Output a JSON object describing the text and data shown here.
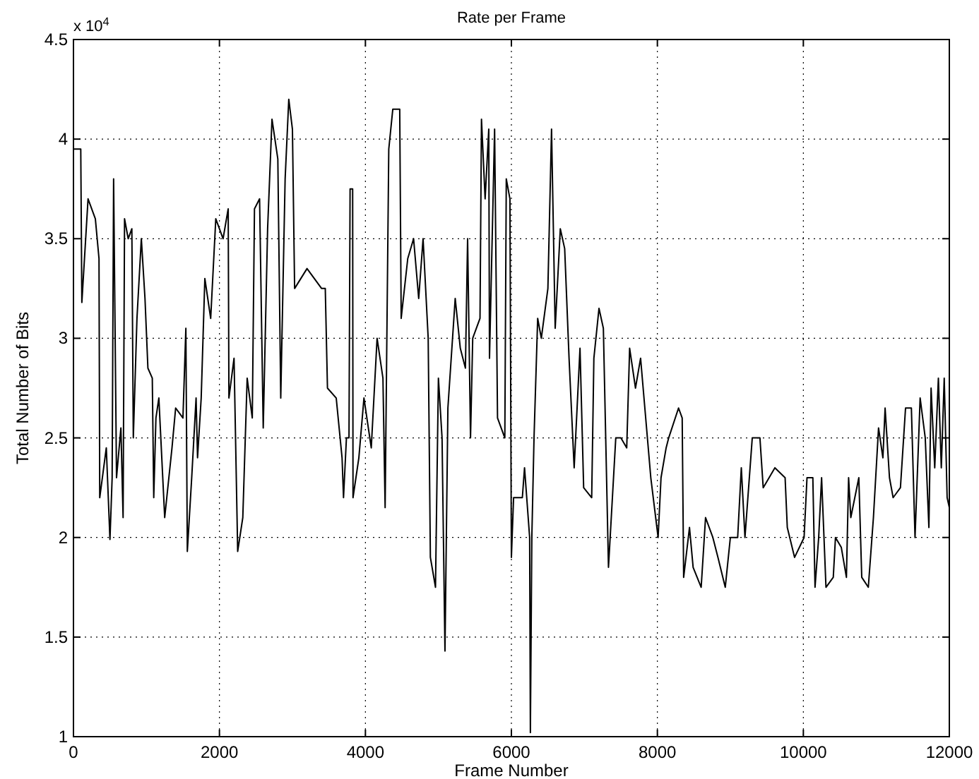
{
  "chart_data": {
    "type": "line",
    "title": "Rate per Frame",
    "xlabel": "Frame Number",
    "ylabel": "Total Number of Bits",
    "annotations": [
      "x 10$^{4}$"
    ],
    "xlim": [
      0,
      12000
    ],
    "xticks": [
      0,
      2000,
      4000,
      6000,
      8000,
      10000,
      12000
    ],
    "ylim": [
      1,
      4.5
    ],
    "yticks": [
      1,
      1.5,
      2,
      2.5,
      3,
      3.5,
      4,
      4.5
    ],
    "grid": true,
    "marker": "none",
    "line_style": "solid",
    "series": [
      {
        "color": "#000000",
        "x": [
          0,
          100,
          115,
          200,
          300,
          350,
          360,
          450,
          500,
          530,
          550,
          590,
          650,
          680,
          700,
          750,
          800,
          820,
          870,
          930,
          980,
          1020,
          1080,
          1100,
          1130,
          1170,
          1250,
          1350,
          1400,
          1500,
          1540,
          1560,
          1620,
          1680,
          1700,
          1750,
          1800,
          1880,
          1950,
          2050,
          2120,
          2130,
          2200,
          2250,
          2320,
          2380,
          2450,
          2480,
          2550,
          2600,
          2660,
          2720,
          2800,
          2840,
          2900,
          2950,
          3000,
          3030,
          3200,
          3400,
          3450,
          3480,
          3600,
          3680,
          3700,
          3740,
          3775,
          3790,
          3825,
          3830,
          3910,
          3980,
          4080,
          4160,
          4240,
          4270,
          4320,
          4375,
          4470,
          4490,
          4580,
          4660,
          4730,
          4790,
          4860,
          4890,
          4960,
          5000,
          5050,
          5090,
          5130,
          5230,
          5300,
          5370,
          5400,
          5440,
          5470,
          5570,
          5590,
          5640,
          5690,
          5700,
          5770,
          5810,
          5910,
          5930,
          5980,
          6000,
          6030,
          6150,
          6180,
          6250,
          6260,
          6280,
          6310,
          6360,
          6410,
          6500,
          6550,
          6600,
          6670,
          6730,
          6790,
          6860,
          6940,
          6990,
          7100,
          7130,
          7200,
          7260,
          7330,
          7430,
          7500,
          7580,
          7620,
          7700,
          7770,
          7910,
          8010,
          8050,
          8120,
          8155,
          8290,
          8340,
          8360,
          8440,
          8490,
          8600,
          8660,
          8760,
          8830,
          8930,
          9000,
          9100,
          9150,
          9200,
          9300,
          9405,
          9450,
          9610,
          9750,
          9780,
          9880,
          10010,
          10050,
          10130,
          10160,
          10210,
          10250,
          10310,
          10410,
          10440,
          10520,
          10590,
          10620,
          10650,
          10760,
          10800,
          10890,
          10960,
          11030,
          11090,
          11120,
          11180,
          11230,
          11330,
          11400,
          11480,
          11530,
          11600,
          11670,
          11720,
          11750,
          11800,
          11850,
          11890,
          11930,
          11970,
          12000
        ],
        "values": [
          3.95,
          3.95,
          3.18,
          3.7,
          3.6,
          3.4,
          2.2,
          2.45,
          1.99,
          2.3,
          3.8,
          2.3,
          2.55,
          2.1,
          3.6,
          3.5,
          3.55,
          2.5,
          3.1,
          3.5,
          3.2,
          2.85,
          2.8,
          2.2,
          2.6,
          2.7,
          2.1,
          2.45,
          2.65,
          2.6,
          3.05,
          1.93,
          2.3,
          2.7,
          2.4,
          2.7,
          3.3,
          3.1,
          3.6,
          3.5,
          3.65,
          2.7,
          2.9,
          1.93,
          2.1,
          2.8,
          2.6,
          3.65,
          3.7,
          2.55,
          3.55,
          4.1,
          3.9,
          2.7,
          3.8,
          4.2,
          4.05,
          3.25,
          3.35,
          3.25,
          3.25,
          2.75,
          2.7,
          2.4,
          2.2,
          2.5,
          2.5,
          3.75,
          3.75,
          2.2,
          2.4,
          2.7,
          2.45,
          3.0,
          2.8,
          2.15,
          3.95,
          4.15,
          4.15,
          3.1,
          3.4,
          3.5,
          3.2,
          3.5,
          3.0,
          1.9,
          1.75,
          2.8,
          2.5,
          1.43,
          2.65,
          3.2,
          2.95,
          2.85,
          3.5,
          2.5,
          3.0,
          3.1,
          4.1,
          3.7,
          4.05,
          2.9,
          4.05,
          2.6,
          2.5,
          3.8,
          3.7,
          1.9,
          2.2,
          2.2,
          2.35,
          2.0,
          1.02,
          2.0,
          2.5,
          3.1,
          3.0,
          3.25,
          4.05,
          3.05,
          3.55,
          3.45,
          2.9,
          2.35,
          2.95,
          2.25,
          2.2,
          2.9,
          3.15,
          3.05,
          1.85,
          2.5,
          2.5,
          2.45,
          2.95,
          2.75,
          2.9,
          2.3,
          2.0,
          2.3,
          2.45,
          2.5,
          2.65,
          2.6,
          1.8,
          2.05,
          1.85,
          1.75,
          2.1,
          2.0,
          1.9,
          1.75,
          2.0,
          2.0,
          2.35,
          2.0,
          2.5,
          2.5,
          2.25,
          2.35,
          2.3,
          2.05,
          1.9,
          2.0,
          2.3,
          2.3,
          1.75,
          2.0,
          2.3,
          1.75,
          1.8,
          2.0,
          1.95,
          1.8,
          2.3,
          2.1,
          2.3,
          1.8,
          1.75,
          2.1,
          2.55,
          2.4,
          2.65,
          2.3,
          2.2,
          2.25,
          2.65,
          2.65,
          2.0,
          2.7,
          2.5,
          2.05,
          2.75,
          2.35,
          2.8,
          2.35,
          2.8,
          2.2,
          2.15
        ]
      }
    ]
  }
}
